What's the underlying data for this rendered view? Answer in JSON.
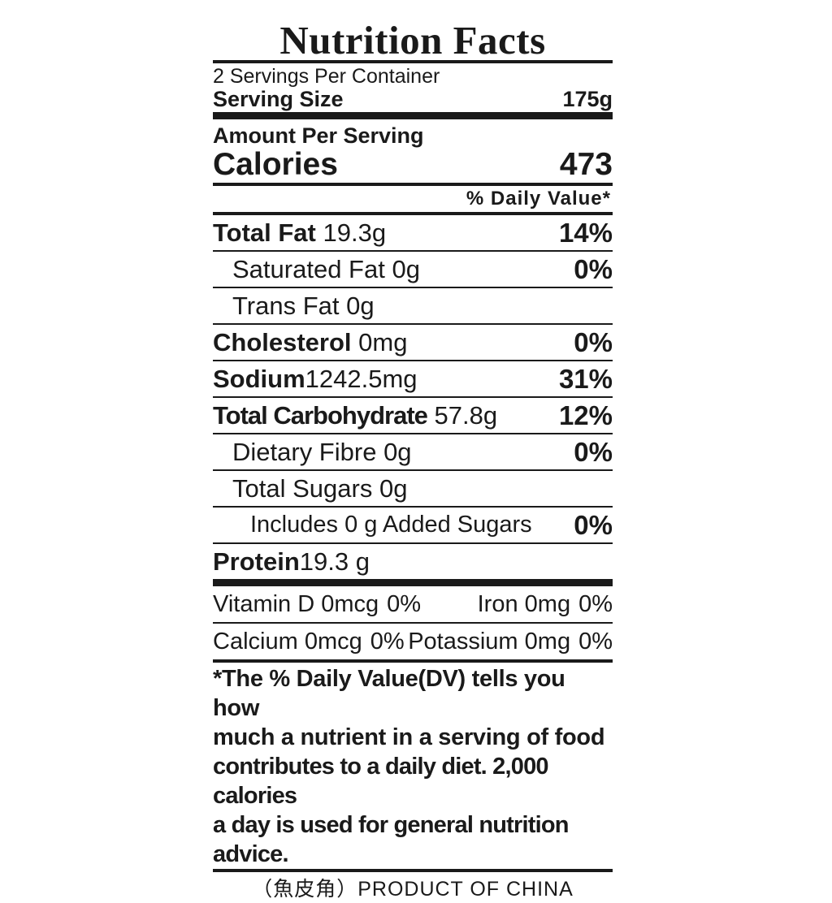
{
  "title": "Nutrition Facts",
  "servings_per_container": "2 Servings Per Container",
  "serving_size": {
    "label": "Serving Size",
    "value": "175g"
  },
  "amount_per_serving": "Amount Per Serving",
  "calories": {
    "label": "Calories",
    "value": "473"
  },
  "daily_value_header": "% Daily Value*",
  "nutrients": [
    {
      "name": "Total Fat",
      "amount": "19.3g",
      "dv": "14%"
    },
    {
      "name": "Saturated Fat",
      "amount": "0g",
      "dv": "0%"
    },
    {
      "name": "Trans Fat",
      "amount": "0g",
      "dv": ""
    },
    {
      "name": "Cholesterol",
      "amount": "0mg",
      "dv": "0%"
    },
    {
      "name": "Sodium",
      "amount": "1242.5mg",
      "dv": "31%"
    },
    {
      "name": "Total Carbohydrate",
      "amount": "57.8g",
      "dv": "12%"
    },
    {
      "name": "Dietary Fibre",
      "amount": "0g",
      "dv": "0%"
    },
    {
      "name": "Total Sugars",
      "amount": "0g",
      "dv": ""
    },
    {
      "name": "Includes 0 g Added Sugars",
      "amount": "",
      "dv": "0%"
    },
    {
      "name": "Protein",
      "amount": "19.3 g",
      "dv": ""
    }
  ],
  "vitamins": [
    {
      "name": "Vitamin D",
      "amount": "0mcg",
      "dv": "0%"
    },
    {
      "name": "Iron",
      "amount": "0mg",
      "dv": "0%"
    },
    {
      "name": "Calcium",
      "amount": "0mcg",
      "dv": "0%"
    },
    {
      "name": "Potassium",
      "amount": "0mg",
      "dv": "0%"
    }
  ],
  "footnote": [
    "*The % Daily Value(DV) tells you how",
    "much a nutrient in a serving of food",
    "contributes to a daily diet. 2,000 calories",
    "a day is used for general nutrition advice."
  ],
  "origin": "（魚皮角）PRODUCT OF CHINA"
}
